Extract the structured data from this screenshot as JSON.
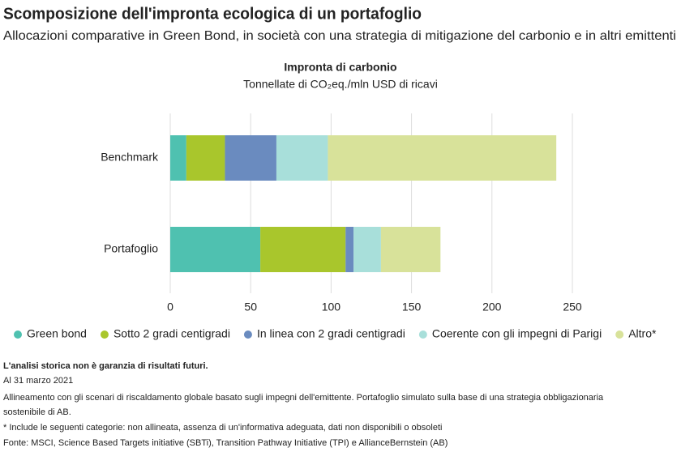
{
  "header": {
    "title": "Scomposizione dell'impronta ecologica di un portafoglio",
    "subtitle": "Allocazioni comparative in Green Bond, in società con una strategia di mitigazione del carbonio e in altri emittenti"
  },
  "chart_data": {
    "type": "bar",
    "orientation": "horizontal",
    "stacked": true,
    "title": "Impronta di carbonio",
    "subtitle": "Tonnellate di CO₂eq./mln USD di ricavi",
    "categories": [
      "Benchmark",
      "Portafoglio"
    ],
    "series": [
      {
        "name": "Green bond",
        "color": "#4fc1b0",
        "values": [
          10,
          56
        ]
      },
      {
        "name": "Sotto 2 gradi centigradi",
        "color": "#a9c62c",
        "values": [
          24,
          53
        ]
      },
      {
        "name": "In linea con 2 gradi centigradi",
        "color": "#6a8bbf",
        "values": [
          32,
          5
        ]
      },
      {
        "name": "Coerente con gli impegni di Parigi",
        "color": "#a8dfda",
        "values": [
          32,
          17
        ]
      },
      {
        "name": "Altro*",
        "color": "#d8e29a",
        "values": [
          142,
          37
        ]
      }
    ],
    "xlim": [
      0,
      250
    ],
    "xticks": [
      0,
      50,
      100,
      150,
      200,
      250
    ],
    "grid": true
  },
  "notes": [
    "L'analisi storica non è garanzia di risultati futuri.",
    "Al 31 marzo 2021",
    "Allineamento con gli scenari di riscaldamento globale basato sugli impegni dell'emittente. Portafoglio simulato sulla base di una strategia obbligazionaria",
    "sostenibile di AB.",
    "* Include le seguenti categorie: non allineata, assenza di un'informativa adeguata, dati non disponibili o obsoleti",
    "Fonte: MSCI, Science Based Targets initiative (SBTi), Transition Pathway Initiative (TPI) e AllianceBernstein (AB)"
  ]
}
